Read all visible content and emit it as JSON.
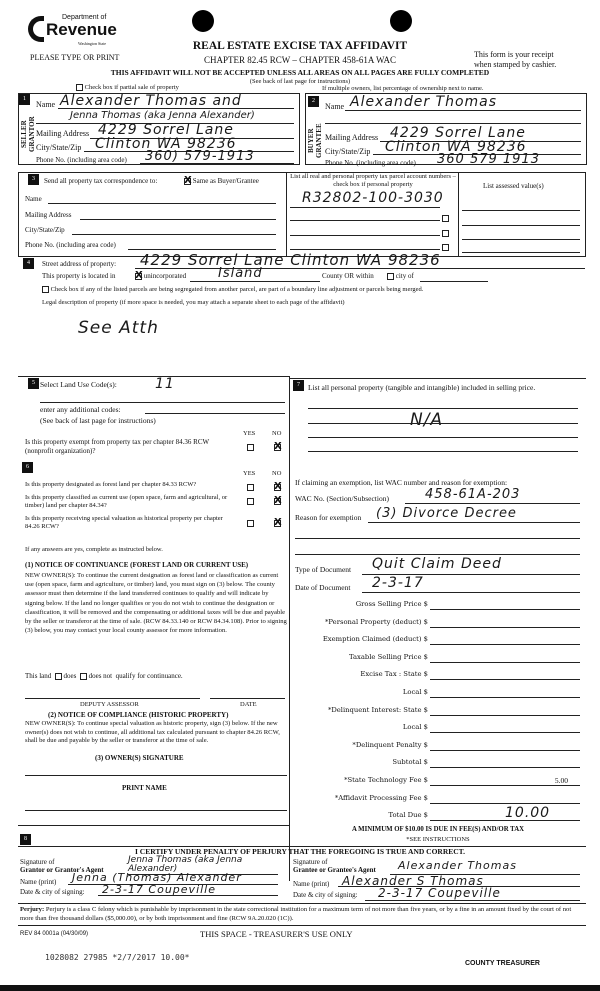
{
  "header": {
    "logo_line1": "Department of",
    "logo_line2": "Revenue",
    "logo_line3": "Washington State",
    "please": "PLEASE TYPE OR PRINT",
    "title": "REAL ESTATE EXCISE TAX AFFIDAVIT",
    "chapter": "CHAPTER 82.45 RCW – CHAPTER 458-61A WAC",
    "receipt1": "This form is your receipt",
    "receipt2": "when stamped by cashier.",
    "warning": "THIS AFFIDAVIT WILL NOT BE ACCEPTED UNLESS ALL AREAS ON ALL PAGES ARE FULLY COMPLETED",
    "see_back": "(See back of last page for instructions)",
    "partial": "Check box if partial sale of property",
    "multiple": "If multiple owners, list percentage of ownership next to name."
  },
  "s1": {
    "num": "1",
    "side": "SELLER GRANTOR",
    "name_label": "Name",
    "name1": "Alexander Thomas and",
    "name2": "Jenna Thomas (aka Jenna Alexander)",
    "addr_label": "Mailing Address",
    "addr": "4229 Sorrel Lane",
    "city_label": "City/State/Zip",
    "city": "Clinton WA 98236",
    "phone_label": "Phone No. (including area code)",
    "phone": "360) 579-1913"
  },
  "s2": {
    "num": "2",
    "side": "BUYER GRANTEE",
    "name_label": "Name",
    "name": "Alexander Thomas",
    "addr_label": "Mailing Address",
    "addr": "4229 Sorrel Lane",
    "city_label": "City/State/Zip",
    "city": "Clinton WA 98236",
    "phone_label": "Phone No. (including area code)",
    "phone": "360 579 1913"
  },
  "s3": {
    "num": "3",
    "send": "Send all property tax correspondence to:",
    "same": "Same as Buyer/Grantee",
    "name": "Name",
    "addr": "Mailing Address",
    "city": "City/State/Zip",
    "phone": "Phone No. (including area code)",
    "parcel_header": "List all real and personal property tax parcel account numbers – check box if personal property",
    "parcel": "R32802-100-3030",
    "assessed_header": "List assessed value(s)"
  },
  "s4": {
    "num": "4",
    "street_label": "Street address of property:",
    "street": "4229 Sorrel Lane Clinton WA 98236",
    "located": "This property is located in",
    "unincorp": "unincorporated",
    "county_val": "Island",
    "county": "County OR within",
    "city_of": "city of",
    "segregated": "Check box if any of the listed parcels are being segregated from another parcel, are part of a boundary line adjustment or parcels being merged.",
    "legal": "Legal description of property (if more space is needed, you may attach a separate sheet to each page of the affidavit)",
    "legal_val": "See Atth"
  },
  "s5": {
    "num": "5",
    "land_use": "Select Land Use Code(s):",
    "land_use_val": "11",
    "additional": "enter any additional codes:",
    "see_back": "(See back of last page for instructions)",
    "yes": "YES",
    "no": "NO",
    "exempt_q": "Is this property exempt from property tax per chapter 84.36 RCW (nonprofit organization)?"
  },
  "s6": {
    "num": "6",
    "q1": "Is this property designated as forest land per chapter 84.33 RCW?",
    "q2": "Is this property classified as current use (open space, farm and agricultural, or timber) land per chapter 84.34?",
    "q3": "Is this property receiving special valuation as historical property per chapter 84.26 RCW?",
    "if_yes": "If any answers are yes, complete as instructed below.",
    "n1_title": "(1) NOTICE OF CONTINUANCE (FOREST LAND OR CURRENT USE)",
    "n1_body": "NEW OWNER(S): To continue the current designation as forest land or classification as current use (open space, farm and agriculture, or timber) land, you must sign on (3) below. The county assessor must then determine if the land transferred continues to qualify and will indicate by signing below. If the land no longer qualifies or you do not wish to continue the designation or classification, it will be removed and the compensating or additional taxes will be due and payable by the seller or transferor at the time of sale. (RCW 84.33.140 or RCW 84.34.108). Prior to signing (3) below, you may contact your local county assessor for more information.",
    "this_land": "This land",
    "does": "does",
    "does_not": "does not",
    "qualify": "qualify for continuance.",
    "deputy": "DEPUTY ASSESSOR",
    "date": "DATE",
    "n2_title": "(2) NOTICE OF COMPLIANCE (HISTORIC PROPERTY)",
    "n2_body": "NEW OWNER(S): To continue special valuation as historic property, sign (3) below. If the new owner(s) does not wish to continue, all additional tax calculated pursuant to chapter 84.26 RCW, shall be due and payable by the seller or transferor at the time of sale.",
    "owner_sig": "(3) OWNER(S) SIGNATURE",
    "print_name": "PRINT NAME"
  },
  "s7": {
    "num": "7",
    "personal": "List all personal property (tangible and intangible) included in selling price.",
    "personal_val": "N/A",
    "exemption": "If claiming an exemption, list WAC number and reason for exemption:",
    "wac_label": "WAC No. (Section/Subsection)",
    "wac": "458-61A-203",
    "reason_label": "Reason for exemption",
    "reason": "(3) Divorce Decree",
    "doc_type_label": "Type of Document",
    "doc_type": "Quit Claim Deed",
    "doc_date_label": "Date of Document",
    "doc_date": "2-3-17",
    "fees": [
      {
        "label": "Gross Selling Price $",
        "value": ""
      },
      {
        "label": "*Personal Property (deduct) $",
        "value": ""
      },
      {
        "label": "Exemption Claimed (deduct) $",
        "value": ""
      },
      {
        "label": "Taxable Selling Price $",
        "value": ""
      },
      {
        "label": "Excise Tax : State $",
        "value": ""
      },
      {
        "label": "Local $",
        "value": ""
      },
      {
        "label": "*Delinquent Interest: State $",
        "value": ""
      },
      {
        "label": "Local $",
        "value": ""
      },
      {
        "label": "*Delinquent Penalty $",
        "value": ""
      },
      {
        "label": "Subtotal $",
        "value": ""
      },
      {
        "label": "*State Technology Fee $",
        "value": "5.00"
      },
      {
        "label": "*Affidavit Processing Fee $",
        "value": ""
      },
      {
        "label": "Total Due $",
        "value": "10.00"
      }
    ],
    "minimum": "A MINIMUM OF $10.00 IS DUE IN FEE(S) AND/OR TAX",
    "see_instr": "*SEE INSTRUCTIONS"
  },
  "s8": {
    "num": "8",
    "certify": "I CERTIFY UNDER PENALTY OF PERJURY THAT THE FOREGOING IS TRUE AND CORRECT.",
    "grantor_sig_label1": "Signature of",
    "grantor_sig_label2": "Grantor or Grantor's Agent",
    "grantor_sig": "Jenna Thomas (aka Jenna Alexander)",
    "grantor_name_label": "Name (print)",
    "grantor_name": "Jenna (Thomas) Alexander",
    "grantor_date_label": "Date & city of signing:",
    "grantor_date": "2-3-17 Coupeville",
    "grantee_sig_label1": "Signature of",
    "grantee_sig_label2": "Grantee or Grantee's Agent",
    "grantee_sig": "Alexander Thomas",
    "grantee_name_label": "Name (print)",
    "grantee_name": "Alexander S Thomas",
    "grantee_date_label": "Date & city of signing:",
    "grantee_date": "2-3-17 Coupeville"
  },
  "footer": {
    "perjury_b": "Perjury:",
    "perjury": "Perjury is a class C felony which is punishable by imprisonment in the state correctional institution for a maximum term of not more than five years, or by a fine in an amount fixed by the court of not more than five thousand dollars ($5,000.00), or by both imprisonment and fine (RCW 9A.20.020 (1C)).",
    "rev": "REV 84 0001a (04/30/09)",
    "treasurer_space": "THIS SPACE - TREASURER'S USE ONLY",
    "stamp": "1028082 27985 *2/7/2017 10.00*",
    "county_treasurer": "COUNTY TREASURER"
  }
}
